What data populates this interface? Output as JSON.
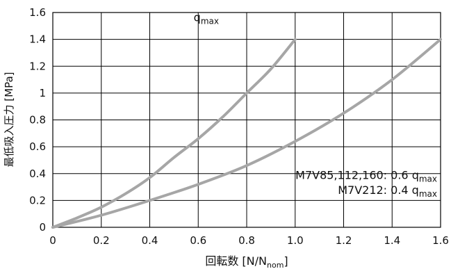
{
  "chart_data": {
    "type": "line",
    "xlabel": {
      "main": "回転数 [N/N",
      "sub": "nom",
      "end": "]"
    },
    "ylabel": "最低吸入圧力 [MPa]",
    "xlim": [
      0,
      1.6
    ],
    "ylim": [
      0,
      1.6
    ],
    "x_ticks": [
      "0",
      "0.2",
      "0.4",
      "0.6",
      "0.8",
      "1.0",
      "1.2",
      "1.4",
      "1.6"
    ],
    "y_ticks": [
      "0",
      "0.2",
      "0.4",
      "0.6",
      "0.8",
      "1",
      "1.2",
      "1.4",
      "1.6"
    ],
    "grid": true,
    "line_color": "#a6a6a6",
    "series": [
      {
        "x": [
          0,
          0.1,
          0.2,
          0.3,
          0.4,
          0.5,
          0.6,
          0.7,
          0.8,
          0.9,
          1.0
        ],
        "y": [
          0,
          0.07,
          0.15,
          0.25,
          0.37,
          0.52,
          0.66,
          0.82,
          1.0,
          1.18,
          1.4
        ]
      },
      {
        "x": [
          0,
          0.2,
          0.4,
          0.6,
          0.8,
          1.0,
          1.2,
          1.4,
          1.6
        ],
        "y": [
          0,
          0.09,
          0.2,
          0.32,
          0.46,
          0.64,
          0.85,
          1.1,
          1.4
        ]
      }
    ],
    "annotations": [
      {
        "main": "q",
        "sub": "max",
        "x": 0.67,
        "y": 1.56
      },
      {
        "main": "M7V85,112,160: 0.6 q",
        "sub": "max",
        "x": 1.6,
        "y": 0.385
      },
      {
        "main": "M7V212: 0.4 q",
        "sub": "max",
        "x": 1.6,
        "y": 0.275
      }
    ]
  }
}
